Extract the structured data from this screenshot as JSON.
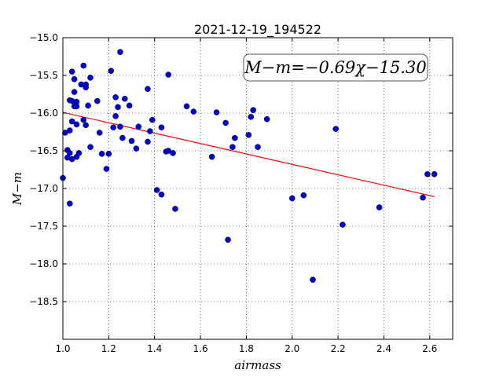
{
  "chart_data": {
    "type": "scatter",
    "title": "2021-12-19_194522",
    "xlabel": "airmass",
    "ylabel": "M−m",
    "xlim": [
      1.0,
      2.7
    ],
    "ylim": [
      -19.0,
      -15.0
    ],
    "y_inverted": true,
    "grid": true,
    "grid_style": "dotted",
    "x_ticks": [
      "1.0",
      "1.2",
      "1.4",
      "1.6",
      "1.8",
      "2.0",
      "2.2",
      "2.4",
      "2.6"
    ],
    "y_ticks": [
      "−15.0",
      "−15.5",
      "−16.0",
      "−16.5",
      "−17.0",
      "−17.5",
      "−18.0",
      "−18.5"
    ],
    "annotation": "M−m=−0.69χ−15.30",
    "fit": {
      "slope": -0.69,
      "intercept": -15.3,
      "x_range": [
        1.0,
        2.62
      ],
      "color": "#ff0000"
    },
    "point_color": "#0000cc",
    "points": [
      {
        "x": 1.0,
        "y": -16.86
      },
      {
        "x": 1.01,
        "y": -16.26
      },
      {
        "x": 1.02,
        "y": -16.49
      },
      {
        "x": 1.03,
        "y": -16.53
      },
      {
        "x": 1.02,
        "y": -16.59
      },
      {
        "x": 1.03,
        "y": -17.2
      },
      {
        "x": 1.03,
        "y": -16.23
      },
      {
        "x": 1.03,
        "y": -15.83
      },
      {
        "x": 1.04,
        "y": -15.84
      },
      {
        "x": 1.04,
        "y": -15.45
      },
      {
        "x": 1.04,
        "y": -16.61
      },
      {
        "x": 1.04,
        "y": -16.11
      },
      {
        "x": 1.05,
        "y": -15.55
      },
      {
        "x": 1.05,
        "y": -15.72
      },
      {
        "x": 1.05,
        "y": -15.91
      },
      {
        "x": 1.06,
        "y": -15.85
      },
      {
        "x": 1.06,
        "y": -16.15
      },
      {
        "x": 1.06,
        "y": -16.58
      },
      {
        "x": 1.06,
        "y": -15.91
      },
      {
        "x": 1.07,
        "y": -16.53
      },
      {
        "x": 1.08,
        "y": -15.62
      },
      {
        "x": 1.09,
        "y": -15.37
      },
      {
        "x": 1.09,
        "y": -16.09
      },
      {
        "x": 1.1,
        "y": -16.16
      },
      {
        "x": 1.1,
        "y": -15.62
      },
      {
        "x": 1.1,
        "y": -15.66
      },
      {
        "x": 1.11,
        "y": -15.9
      },
      {
        "x": 1.12,
        "y": -15.53
      },
      {
        "x": 1.12,
        "y": -16.45
      },
      {
        "x": 1.15,
        "y": -15.84
      },
      {
        "x": 1.16,
        "y": -16.26
      },
      {
        "x": 1.17,
        "y": -16.54
      },
      {
        "x": 1.19,
        "y": -16.74
      },
      {
        "x": 1.2,
        "y": -16.54
      },
      {
        "x": 1.21,
        "y": -15.44
      },
      {
        "x": 1.22,
        "y": -16.19
      },
      {
        "x": 1.23,
        "y": -15.79
      },
      {
        "x": 1.23,
        "y": -16.04
      },
      {
        "x": 1.24,
        "y": -15.92
      },
      {
        "x": 1.25,
        "y": -15.19
      },
      {
        "x": 1.25,
        "y": -16.18
      },
      {
        "x": 1.26,
        "y": -16.33
      },
      {
        "x": 1.27,
        "y": -15.81
      },
      {
        "x": 1.29,
        "y": -15.9
      },
      {
        "x": 1.3,
        "y": -16.37
      },
      {
        "x": 1.32,
        "y": -16.47
      },
      {
        "x": 1.33,
        "y": -16.18
      },
      {
        "x": 1.37,
        "y": -16.38
      },
      {
        "x": 1.37,
        "y": -15.68
      },
      {
        "x": 1.38,
        "y": -16.24
      },
      {
        "x": 1.39,
        "y": -16.09
      },
      {
        "x": 1.41,
        "y": -17.02
      },
      {
        "x": 1.43,
        "y": -17.08
      },
      {
        "x": 1.43,
        "y": -16.19
      },
      {
        "x": 1.45,
        "y": -16.51
      },
      {
        "x": 1.46,
        "y": -15.49
      },
      {
        "x": 1.46,
        "y": -16.5
      },
      {
        "x": 1.48,
        "y": -16.53
      },
      {
        "x": 1.49,
        "y": -17.27
      },
      {
        "x": 1.54,
        "y": -15.91
      },
      {
        "x": 1.57,
        "y": -15.98
      },
      {
        "x": 1.65,
        "y": -16.58
      },
      {
        "x": 1.67,
        "y": -15.99
      },
      {
        "x": 1.71,
        "y": -16.13
      },
      {
        "x": 1.72,
        "y": -17.68
      },
      {
        "x": 1.74,
        "y": -16.45
      },
      {
        "x": 1.75,
        "y": -16.33
      },
      {
        "x": 1.81,
        "y": -16.29
      },
      {
        "x": 1.82,
        "y": -16.05
      },
      {
        "x": 1.83,
        "y": -15.96
      },
      {
        "x": 1.85,
        "y": -16.45
      },
      {
        "x": 1.89,
        "y": -16.08
      },
      {
        "x": 2.0,
        "y": -17.13
      },
      {
        "x": 2.05,
        "y": -17.09
      },
      {
        "x": 2.09,
        "y": -18.21
      },
      {
        "x": 2.19,
        "y": -16.21
      },
      {
        "x": 2.22,
        "y": -17.48
      },
      {
        "x": 2.38,
        "y": -17.25
      },
      {
        "x": 2.57,
        "y": -17.12
      },
      {
        "x": 2.59,
        "y": -16.81
      },
      {
        "x": 2.62,
        "y": -16.81
      }
    ]
  }
}
